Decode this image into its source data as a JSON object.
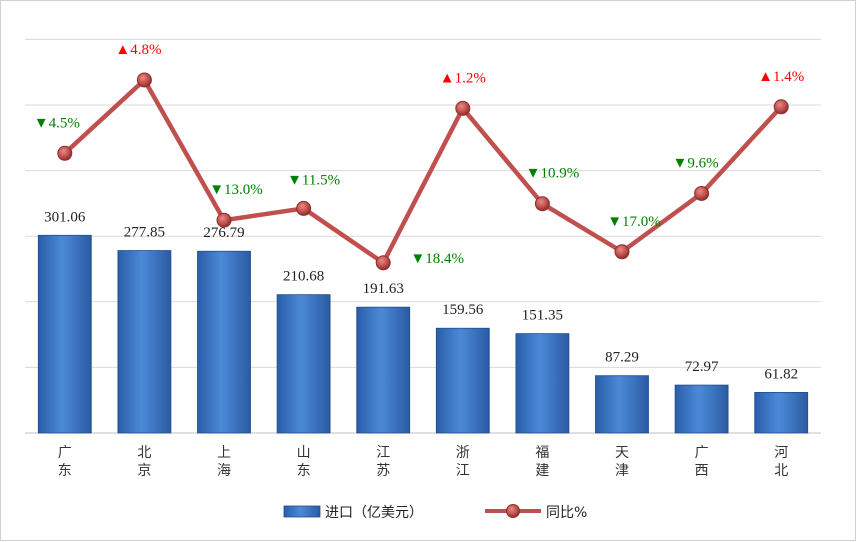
{
  "chart_data": {
    "type": "bar+line",
    "categories": [
      "广东",
      "北京",
      "上海",
      "山东",
      "江苏",
      "浙江",
      "福建",
      "天津",
      "广西",
      "河北"
    ],
    "series": [
      {
        "name": "进口（亿美元）",
        "type": "bar",
        "values": [
          301.06,
          277.85,
          276.79,
          210.68,
          191.63,
          159.56,
          151.35,
          87.29,
          72.97,
          61.82
        ],
        "labels": [
          "301.06",
          "277.85",
          "276.79",
          "210.68",
          "191.63",
          "159.56",
          "151.35",
          "87.29",
          "72.97",
          "61.82"
        ],
        "color": "#3f7fcf"
      },
      {
        "name": "同比%",
        "type": "line",
        "values": [
          -4.5,
          4.8,
          -13.0,
          -11.5,
          -18.4,
          1.2,
          -10.9,
          -17.0,
          -9.6,
          1.4
        ],
        "labels": [
          "▼4.5%",
          "▲4.8%",
          "▼13.0%",
          "▼11.5%",
          "▼18.4%",
          "▲1.2%",
          "▼10.9%",
          "▼17.0%",
          "▼9.6%",
          "▲1.4%"
        ],
        "color": "#c0504d"
      }
    ],
    "up_color": "#ff0000",
    "down_color": "#008000",
    "bar_ylim": [
      0,
      600
    ],
    "line_ylim": [
      -40,
      10
    ],
    "grid": true,
    "legend_position": "bottom"
  }
}
